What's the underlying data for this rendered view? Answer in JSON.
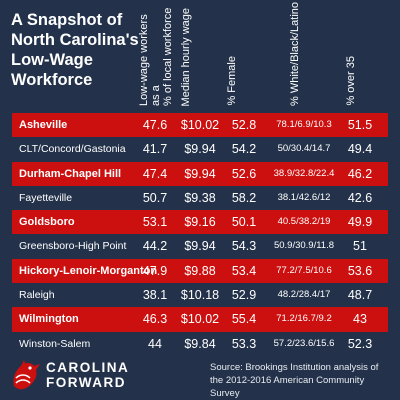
{
  "title": "A Snapshot of North Carolina's Low-Wage Workforce",
  "columns": [
    "Low-wage workers as a\n% of local workforce",
    "Median hourly wage",
    "% Female",
    "% White/Black/Latino",
    "% over 35"
  ],
  "logo_text": "CAROLINA\nFORWARD",
  "source": "Source: Brookings Institution analysis of the 2012-2016 American Community Survey",
  "colors": {
    "background": "#23324a",
    "highlight": "#cc0f0f",
    "text": "#ffffff"
  },
  "chart_data": {
    "type": "table",
    "columns": [
      "Low-wage workers as a % of local workforce",
      "Median hourly wage",
      "% Female",
      "% White/Black/Latino",
      "% over 35"
    ],
    "rows": [
      {
        "place": "Asheville",
        "highlight": true,
        "cells": [
          "47.6",
          "$10.02",
          "52.8",
          "78.1/6.9/10.3",
          "51.5"
        ]
      },
      {
        "place": "CLT/Concord/Gastonia",
        "highlight": false,
        "cells": [
          "41.7",
          "$9.94",
          "54.2",
          "50/30.4/14.7",
          "49.4"
        ]
      },
      {
        "place": "Durham-Chapel Hill",
        "highlight": true,
        "cells": [
          "47.4",
          "$9.94",
          "52.6",
          "38.9/32.8/22.4",
          "46.2"
        ]
      },
      {
        "place": "Fayetteville",
        "highlight": false,
        "cells": [
          "50.7",
          "$9.38",
          "58.2",
          "38.1/42.6/12",
          "42.6"
        ]
      },
      {
        "place": "Goldsboro",
        "highlight": true,
        "cells": [
          "53.1",
          "$9.16",
          "50.1",
          "40.5/38.2/19",
          "49.9"
        ]
      },
      {
        "place": "Greensboro-High Point",
        "highlight": false,
        "cells": [
          "44.2",
          "$9.94",
          "54.3",
          "50.9/30.9/11.8",
          "51"
        ]
      },
      {
        "place": "Hickory-Lenoir-Morganton",
        "highlight": true,
        "cells": [
          "47.9",
          "$9.88",
          "53.4",
          "77.2/7.5/10.6",
          "53.6"
        ]
      },
      {
        "place": "Raleigh",
        "highlight": false,
        "cells": [
          "38.1",
          "$10.18",
          "52.9",
          "48.2/28.4/17",
          "48.7"
        ]
      },
      {
        "place": "Wilmington",
        "highlight": true,
        "cells": [
          "46.3",
          "$10.02",
          "55.4",
          "71.2/16.7/9.2",
          "43"
        ]
      },
      {
        "place": "Winston-Salem",
        "highlight": false,
        "cells": [
          "44",
          "$9.84",
          "53.3",
          "57.2/23.6/15.6",
          "52.3"
        ]
      }
    ]
  }
}
